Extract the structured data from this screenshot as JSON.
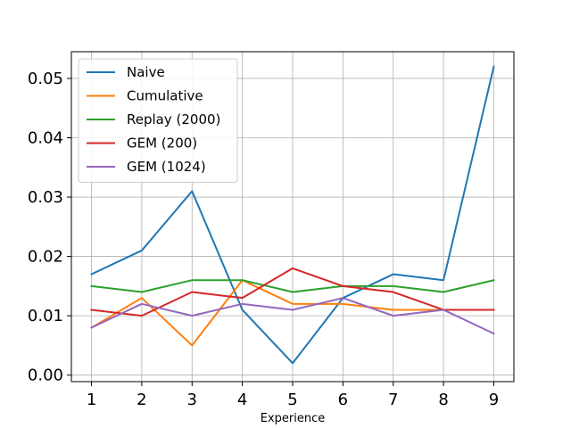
{
  "chart_data": {
    "type": "line",
    "title": "",
    "xlabel": "Experience",
    "ylabel": "",
    "x": [
      1,
      2,
      3,
      4,
      5,
      6,
      7,
      8,
      9
    ],
    "x_tick_labels": [
      "1",
      "2",
      "3",
      "4",
      "5",
      "6",
      "7",
      "8",
      "9"
    ],
    "xlim": [
      0.6,
      9.4
    ],
    "ylim": [
      -0.0011,
      0.0545
    ],
    "y_ticks": [
      0.0,
      0.01,
      0.02,
      0.03,
      0.04,
      0.05
    ],
    "y_tick_labels": [
      "0.00",
      "0.01",
      "0.02",
      "0.03",
      "0.04",
      "0.05"
    ],
    "grid": true,
    "legend_position": "top-left",
    "series": [
      {
        "name": "Naive",
        "color": "#1f77b4",
        "values": [
          0.017,
          0.021,
          0.031,
          0.011,
          0.002,
          0.013,
          0.017,
          0.016,
          0.052
        ]
      },
      {
        "name": "Cumulative",
        "color": "#ff7f0e",
        "values": [
          0.008,
          0.013,
          0.005,
          0.016,
          0.012,
          0.012,
          0.011,
          0.011,
          0.011
        ]
      },
      {
        "name": "Replay (2000)",
        "color": "#2ca02c",
        "values": [
          0.015,
          0.014,
          0.016,
          0.016,
          0.014,
          0.015,
          0.015,
          0.014,
          0.016
        ]
      },
      {
        "name": "GEM (200)",
        "color": "#d62728",
        "values": [
          0.011,
          0.01,
          0.014,
          0.013,
          0.018,
          0.015,
          0.014,
          0.011,
          0.011
        ]
      },
      {
        "name": "GEM (1024)",
        "color": "#9467bd",
        "values": [
          0.008,
          0.012,
          0.01,
          0.012,
          0.011,
          0.013,
          0.01,
          0.011,
          0.007
        ]
      }
    ]
  }
}
